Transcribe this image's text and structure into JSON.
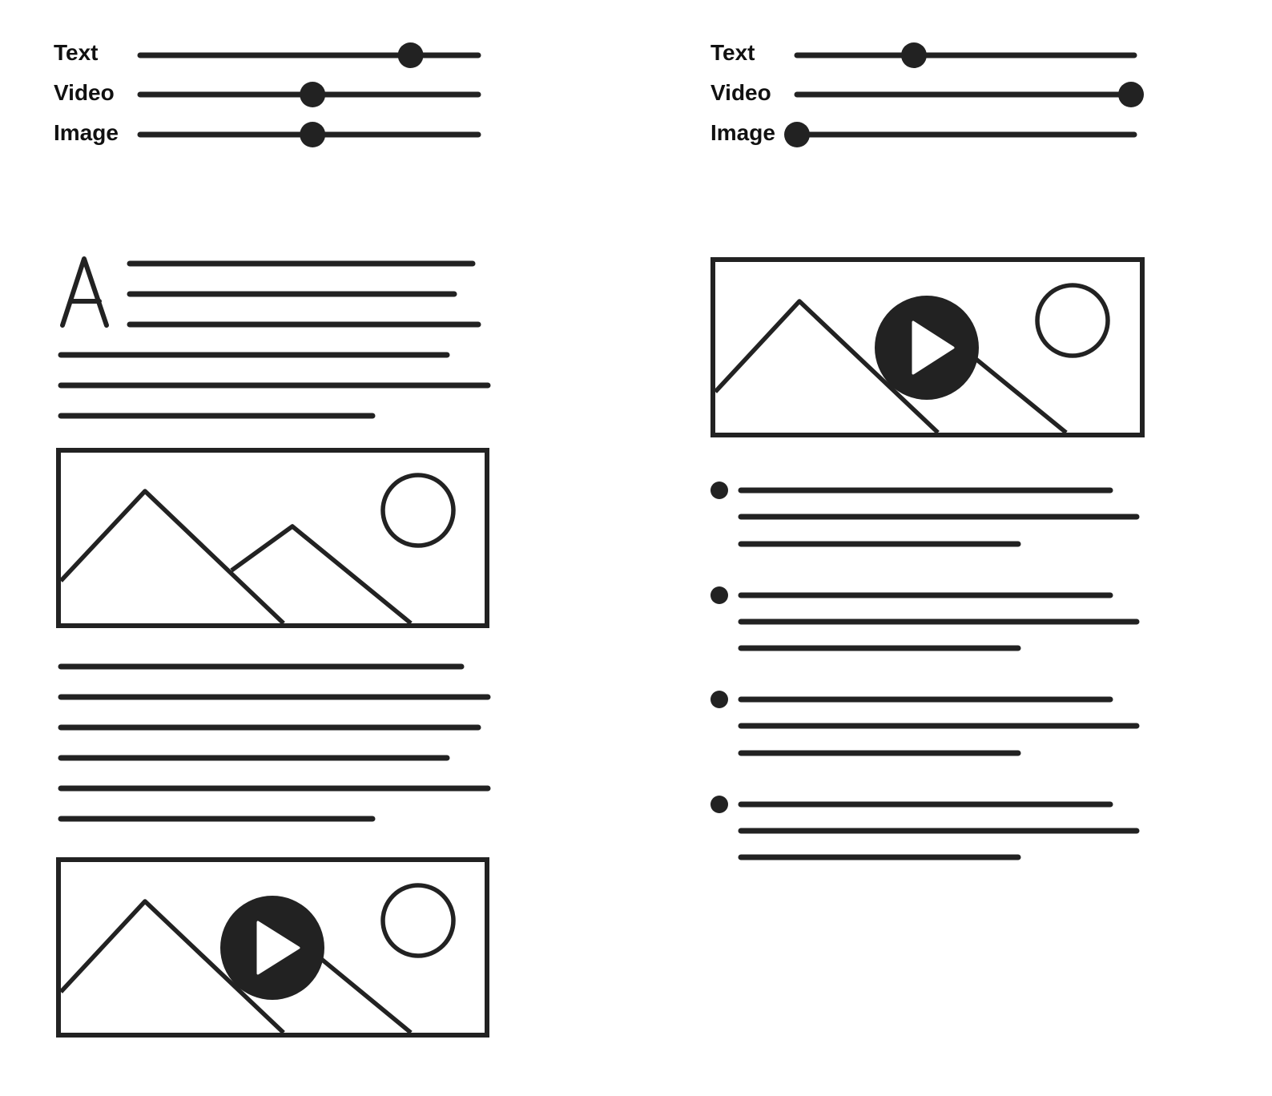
{
  "left_panel": {
    "sliders": [
      {
        "label": "Text",
        "value": 0.8
      },
      {
        "label": "Video",
        "value": 0.51
      },
      {
        "label": "Image",
        "value": 0.51
      }
    ],
    "text_block_icon": "letter-a-icon",
    "image_icon": "image-placeholder-icon",
    "video_icon": "video-placeholder-icon"
  },
  "right_panel": {
    "sliders": [
      {
        "label": "Text",
        "value": 0.35
      },
      {
        "label": "Video",
        "value": 1.0
      },
      {
        "label": "Image",
        "value": 0.0
      }
    ],
    "video_icon": "video-placeholder-icon",
    "bullet_icon": "bullet-dot-icon"
  },
  "colors": {
    "stroke": "#222222",
    "background": "#ffffff"
  }
}
